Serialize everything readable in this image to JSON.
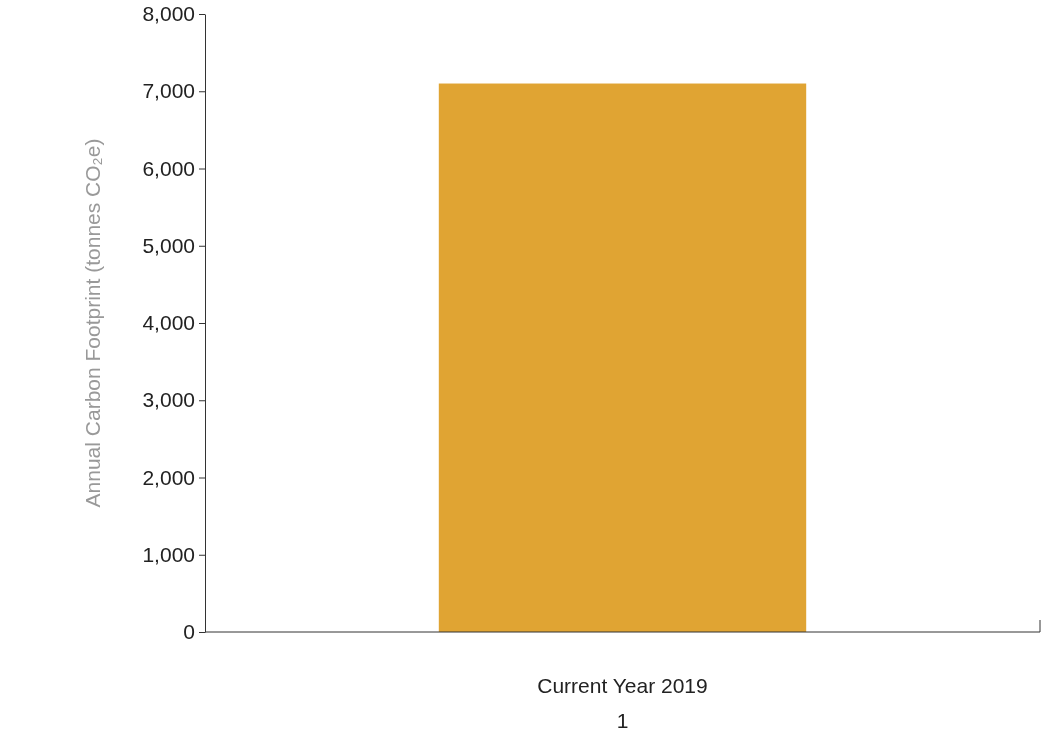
{
  "chart_data": {
    "type": "bar",
    "categories": [
      "Current Year 2019"
    ],
    "values": [
      7100
    ],
    "color": "#e0a433",
    "xlabel": "1",
    "ylabel": "Annual Carbon Footprint (tonnes CO₂e)",
    "ylim": [
      0,
      8000
    ],
    "yticks": [
      {
        "value": 0,
        "label": "0"
      },
      {
        "value": 1000,
        "label": "1,000"
      },
      {
        "value": 2000,
        "label": "2,000"
      },
      {
        "value": 3000,
        "label": "3,000"
      },
      {
        "value": 4000,
        "label": "4,000"
      },
      {
        "value": 5000,
        "label": "5,000"
      },
      {
        "value": 6000,
        "label": "6,000"
      },
      {
        "value": 7000,
        "label": "7,000"
      },
      {
        "value": 8000,
        "label": "8,000"
      }
    ],
    "grid": false
  }
}
